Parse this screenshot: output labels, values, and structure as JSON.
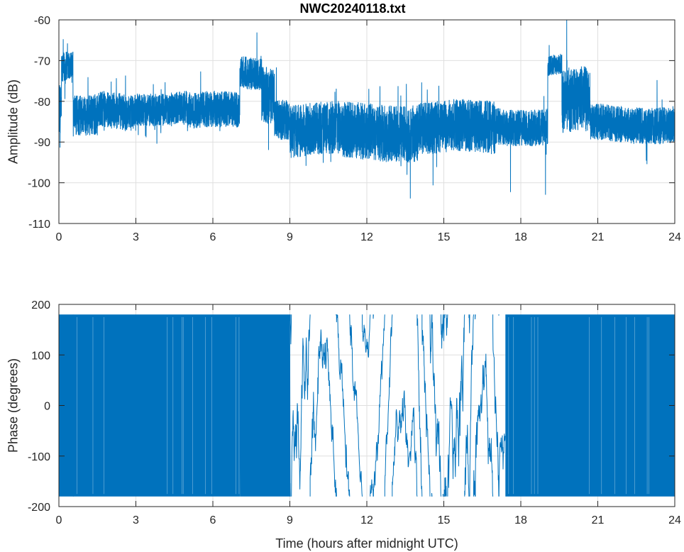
{
  "title": "NWC20240118.txt",
  "chart_data": [
    {
      "type": "line",
      "name": "amplitude-plot",
      "ylabel": "Amplitude (dB)",
      "xlabel": "",
      "xlim": [
        0,
        24
      ],
      "ylim": [
        -110,
        -60
      ],
      "xticks": [
        0,
        3,
        6,
        9,
        12,
        15,
        18,
        21,
        24
      ],
      "yticks": [
        -60,
        -70,
        -80,
        -90,
        -100,
        -110
      ],
      "grid": true,
      "color": "#0072bd",
      "segments": [
        {
          "x": [
            0.0,
            0.1
          ],
          "mid": -82,
          "half": 6,
          "spike": 9
        },
        {
          "x": [
            0.1,
            0.55
          ],
          "mid": -72,
          "half": 4,
          "spike": 6
        },
        {
          "x": [
            0.55,
            1.5
          ],
          "mid": -84,
          "half": 5,
          "spike": 9
        },
        {
          "x": [
            1.5,
            3.0
          ],
          "mid": -82.5,
          "half": 4.5,
          "spike": 6
        },
        {
          "x": [
            3.0,
            5.0
          ],
          "mid": -81.5,
          "half": 4,
          "spike": 6
        },
        {
          "x": [
            5.0,
            7.05
          ],
          "mid": -82.5,
          "half": 4.5,
          "spike": 6
        },
        {
          "x": [
            7.05,
            7.9
          ],
          "mid": -73,
          "half": 4,
          "spike": 6
        },
        {
          "x": [
            7.9,
            8.4
          ],
          "mid": -78,
          "half": 7,
          "spike": 10
        },
        {
          "x": [
            8.4,
            9.0
          ],
          "mid": -84,
          "half": 5,
          "spike": 7
        },
        {
          "x": [
            9.0,
            11.0
          ],
          "mid": -87,
          "half": 6.5,
          "spike": 6
        },
        {
          "x": [
            11.0,
            14.0
          ],
          "mid": -87.5,
          "half": 7,
          "spike": 6
        },
        {
          "x": [
            14.0,
            17.0
          ],
          "mid": -86.5,
          "half": 6.5,
          "spike": 7
        },
        {
          "x": [
            17.0,
            19.05
          ],
          "mid": -86,
          "half": 4.5,
          "spike": 9
        },
        {
          "x": [
            19.05,
            19.6
          ],
          "mid": -71,
          "half": 2.5,
          "spike": 4
        },
        {
          "x": [
            19.6,
            20.7
          ],
          "mid": -80,
          "half": 8,
          "spike": 12
        },
        {
          "x": [
            20.7,
            24.0
          ],
          "mid": -85.5,
          "half": 4.5,
          "spike": 6
        }
      ]
    },
    {
      "type": "line",
      "name": "phase-plot",
      "ylabel": "Phase (degrees)",
      "xlabel": "Time (hours after midnight UTC)",
      "xlim": [
        0,
        24
      ],
      "ylim": [
        -200,
        200
      ],
      "xticks": [
        0,
        3,
        6,
        9,
        12,
        15,
        18,
        21,
        24
      ],
      "yticks": [
        200,
        100,
        0,
        -100,
        -200
      ],
      "grid": true,
      "color": "#0072bd",
      "wrap": [
        -180,
        180
      ],
      "regions": [
        {
          "x": [
            0.0,
            0.55
          ],
          "mode": "wrap",
          "density": 0.6
        },
        {
          "x": [
            0.55,
            7.05
          ],
          "mode": "solid"
        },
        {
          "x": [
            7.05,
            9.0
          ],
          "mode": "wrap",
          "density": 1.0
        },
        {
          "x": [
            9.0,
            17.4
          ],
          "mode": "drift"
        },
        {
          "x": [
            17.4,
            24.0
          ],
          "mode": "solid"
        }
      ]
    }
  ]
}
